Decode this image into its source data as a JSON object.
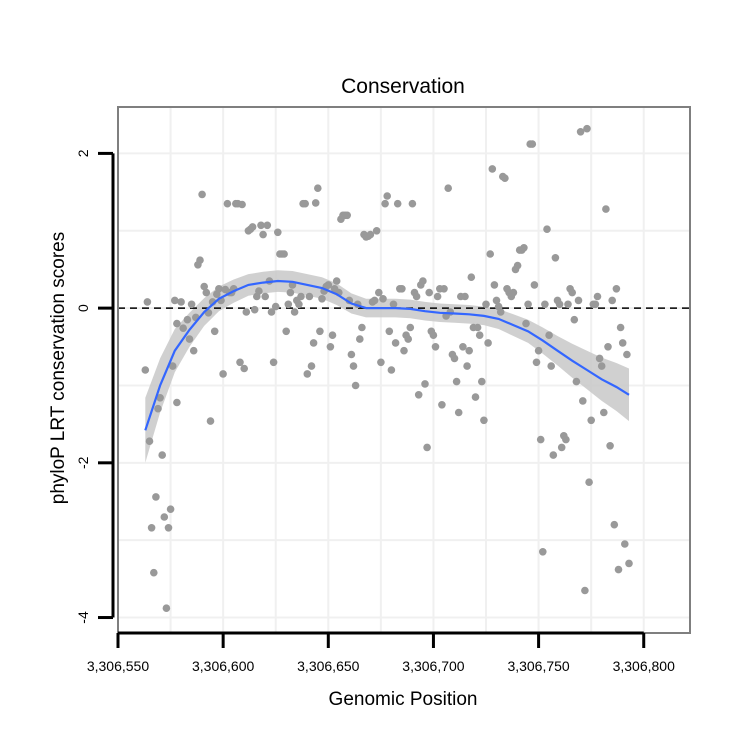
{
  "chart_data": {
    "type": "scatter",
    "title": "Conservation",
    "xlabel": "Genomic Position",
    "ylabel": "phyloP LRT conservation scores",
    "xlim": [
      3306550,
      3306822
    ],
    "ylim": [
      -4.2,
      2.6
    ],
    "x_ticks": [
      3306550,
      3306600,
      3306650,
      3306700,
      3306750,
      3306800
    ],
    "x_tick_labels": [
      "3,306,550",
      "3,306,600",
      "3,306,650",
      "3,306,700",
      "3,306,750",
      "3,306,800"
    ],
    "y_ticks": [
      -4,
      -2,
      0,
      2
    ],
    "y_tick_labels": [
      "-4",
      "-2",
      "0",
      "2"
    ],
    "reference_line_y": 0,
    "grid": true,
    "colors": {
      "points": "#999999",
      "smooth_line": "#3366ff",
      "confidence_band": "#c8c8c8",
      "reference_line": "#000000",
      "panel_border": "#7f7f7f",
      "grid": "#f0f0f0"
    },
    "points": [
      [
        3306563,
        -0.8
      ],
      [
        3306564,
        0.08
      ],
      [
        3306565,
        -1.72
      ],
      [
        3306566,
        -2.84
      ],
      [
        3306567,
        -3.42
      ],
      [
        3306568,
        -2.44
      ],
      [
        3306569,
        -1.3
      ],
      [
        3306570,
        -1.16
      ],
      [
        3306571,
        -1.9
      ],
      [
        3306572,
        -2.7
      ],
      [
        3306573,
        -3.88
      ],
      [
        3306574,
        -2.84
      ],
      [
        3306575,
        -2.6
      ],
      [
        3306576,
        -0.75
      ],
      [
        3306577,
        0.1
      ],
      [
        3306578,
        -1.22
      ],
      [
        3306578,
        -0.2
      ],
      [
        3306580,
        0.08
      ],
      [
        3306581,
        -0.26
      ],
      [
        3306583,
        -0.15
      ],
      [
        3306584,
        -0.4
      ],
      [
        3306585,
        0.05
      ],
      [
        3306586,
        -0.55
      ],
      [
        3306587,
        -0.12
      ],
      [
        3306588,
        0.56
      ],
      [
        3306589,
        0.62
      ],
      [
        3306590,
        1.47
      ],
      [
        3306591,
        0.28
      ],
      [
        3306592,
        0.2
      ],
      [
        3306593,
        -0.06
      ],
      [
        3306594,
        -1.46
      ],
      [
        3306595,
        0.08
      ],
      [
        3306596,
        -0.3
      ],
      [
        3306597,
        0.18
      ],
      [
        3306598,
        0.25
      ],
      [
        3306599,
        0.1
      ],
      [
        3306600,
        -0.85
      ],
      [
        3306601,
        0.24
      ],
      [
        3306602,
        1.35
      ],
      [
        3306603,
        0.2
      ],
      [
        3306604,
        0.2
      ],
      [
        3306605,
        0.25
      ],
      [
        3306606,
        1.35
      ],
      [
        3306607,
        1.35
      ],
      [
        3306608,
        -0.7
      ],
      [
        3306609,
        1.34
      ],
      [
        3306610,
        -0.78
      ],
      [
        3306611,
        -0.05
      ],
      [
        3306612,
        1.0
      ],
      [
        3306613,
        1.02
      ],
      [
        3306614,
        1.05
      ],
      [
        3306615,
        -0.02
      ],
      [
        3306616,
        0.15
      ],
      [
        3306617,
        0.22
      ],
      [
        3306618,
        1.07
      ],
      [
        3306619,
        0.95
      ],
      [
        3306620,
        0.15
      ],
      [
        3306621,
        1.07
      ],
      [
        3306622,
        0.35
      ],
      [
        3306623,
        -0.05
      ],
      [
        3306624,
        -0.7
      ],
      [
        3306625,
        0.02
      ],
      [
        3306626,
        0.98
      ],
      [
        3306627,
        0.7
      ],
      [
        3306628,
        0.7
      ],
      [
        3306629,
        0.7
      ],
      [
        3306630,
        -0.3
      ],
      [
        3306631,
        0.05
      ],
      [
        3306632,
        0.2
      ],
      [
        3306633,
        0.3
      ],
      [
        3306634,
        -0.05
      ],
      [
        3306635,
        0.1
      ],
      [
        3306636,
        0.05
      ],
      [
        3306637,
        0.15
      ],
      [
        3306638,
        1.35
      ],
      [
        3306639,
        1.35
      ],
      [
        3306640,
        -0.85
      ],
      [
        3306641,
        0.15
      ],
      [
        3306642,
        -0.75
      ],
      [
        3306643,
        -0.45
      ],
      [
        3306644,
        1.36
      ],
      [
        3306645,
        1.55
      ],
      [
        3306646,
        -0.3
      ],
      [
        3306647,
        0.12
      ],
      [
        3306648,
        0.22
      ],
      [
        3306649,
        0.28
      ],
      [
        3306650,
        0.3
      ],
      [
        3306651,
        -0.5
      ],
      [
        3306652,
        -0.35
      ],
      [
        3306653,
        0.25
      ],
      [
        3306654,
        0.35
      ],
      [
        3306655,
        0.2
      ],
      [
        3306656,
        1.15
      ],
      [
        3306657,
        1.2
      ],
      [
        3306658,
        1.2
      ],
      [
        3306659,
        1.2
      ],
      [
        3306660,
        0.1
      ],
      [
        3306661,
        -0.6
      ],
      [
        3306662,
        -0.75
      ],
      [
        3306663,
        -1.0
      ],
      [
        3306664,
        0.05
      ],
      [
        3306665,
        -0.4
      ],
      [
        3306666,
        -0.25
      ],
      [
        3306667,
        0.95
      ],
      [
        3306668,
        0.92
      ],
      [
        3306669,
        0.93
      ],
      [
        3306670,
        0.95
      ],
      [
        3306671,
        0.08
      ],
      [
        3306672,
        0.1
      ],
      [
        3306673,
        1.0
      ],
      [
        3306674,
        0.2
      ],
      [
        3306675,
        -0.7
      ],
      [
        3306676,
        0.12
      ],
      [
        3306677,
        1.35
      ],
      [
        3306678,
        1.45
      ],
      [
        3306679,
        -0.3
      ],
      [
        3306680,
        -0.8
      ],
      [
        3306681,
        0.05
      ],
      [
        3306682,
        -0.45
      ],
      [
        3306683,
        1.35
      ],
      [
        3306684,
        0.25
      ],
      [
        3306685,
        0.25
      ],
      [
        3306686,
        -0.55
      ],
      [
        3306687,
        -0.35
      ],
      [
        3306688,
        -0.4
      ],
      [
        3306689,
        -0.25
      ],
      [
        3306690,
        1.35
      ],
      [
        3306691,
        0.2
      ],
      [
        3306692,
        0.15
      ],
      [
        3306693,
        -1.12
      ],
      [
        3306694,
        0.3
      ],
      [
        3306695,
        0.35
      ],
      [
        3306696,
        -0.98
      ],
      [
        3306697,
        -1.8
      ],
      [
        3306698,
        0.2
      ],
      [
        3306699,
        -0.3
      ],
      [
        3306700,
        -0.35
      ],
      [
        3306701,
        -0.5
      ],
      [
        3306702,
        0.15
      ],
      [
        3306703,
        0.25
      ],
      [
        3306704,
        -1.25
      ],
      [
        3306705,
        0.25
      ],
      [
        3306706,
        -0.1
      ],
      [
        3306707,
        1.55
      ],
      [
        3306708,
        -0.05
      ],
      [
        3306709,
        -0.6
      ],
      [
        3306710,
        -0.65
      ],
      [
        3306711,
        -0.95
      ],
      [
        3306712,
        -1.35
      ],
      [
        3306713,
        0.15
      ],
      [
        3306714,
        -0.5
      ],
      [
        3306715,
        0.15
      ],
      [
        3306716,
        -0.75
      ],
      [
        3306717,
        -0.55
      ],
      [
        3306718,
        0.4
      ],
      [
        3306719,
        -0.25
      ],
      [
        3306720,
        -1.15
      ],
      [
        3306721,
        -0.25
      ],
      [
        3306722,
        -0.35
      ],
      [
        3306723,
        -0.95
      ],
      [
        3306724,
        -1.45
      ],
      [
        3306725,
        0.05
      ],
      [
        3306726,
        -0.45
      ],
      [
        3306727,
        0.7
      ],
      [
        3306728,
        1.8
      ],
      [
        3306729,
        0.3
      ],
      [
        3306730,
        0.1
      ],
      [
        3306731,
        0.02
      ],
      [
        3306732,
        -0.05
      ],
      [
        3306733,
        1.7
      ],
      [
        3306734,
        1.68
      ],
      [
        3306735,
        0.25
      ],
      [
        3306736,
        0.2
      ],
      [
        3306737,
        0.15
      ],
      [
        3306738,
        0.2
      ],
      [
        3306739,
        0.5
      ],
      [
        3306740,
        0.55
      ],
      [
        3306741,
        0.75
      ],
      [
        3306742,
        0.75
      ],
      [
        3306743,
        0.78
      ],
      [
        3306744,
        -0.2
      ],
      [
        3306745,
        0.05
      ],
      [
        3306746,
        2.12
      ],
      [
        3306747,
        2.12
      ],
      [
        3306748,
        0.3
      ],
      [
        3306749,
        -0.7
      ],
      [
        3306750,
        -0.55
      ],
      [
        3306751,
        -1.7
      ],
      [
        3306752,
        -3.15
      ],
      [
        3306753,
        0.05
      ],
      [
        3306754,
        1.02
      ],
      [
        3306755,
        -0.35
      ],
      [
        3306756,
        -0.75
      ],
      [
        3306757,
        -1.9
      ],
      [
        3306758,
        0.65
      ],
      [
        3306759,
        0.1
      ],
      [
        3306760,
        0.05
      ],
      [
        3306761,
        -1.8
      ],
      [
        3306762,
        -1.65
      ],
      [
        3306763,
        -1.7
      ],
      [
        3306764,
        0.05
      ],
      [
        3306765,
        0.25
      ],
      [
        3306766,
        0.2
      ],
      [
        3306767,
        -0.15
      ],
      [
        3306768,
        -0.95
      ],
      [
        3306769,
        0.1
      ],
      [
        3306770,
        2.28
      ],
      [
        3306771,
        -1.2
      ],
      [
        3306772,
        -3.65
      ],
      [
        3306773,
        2.32
      ],
      [
        3306774,
        -2.25
      ],
      [
        3306775,
        -1.45
      ],
      [
        3306776,
        0.05
      ],
      [
        3306777,
        0.05
      ],
      [
        3306778,
        0.15
      ],
      [
        3306779,
        -0.65
      ],
      [
        3306780,
        -0.75
      ],
      [
        3306781,
        -1.35
      ],
      [
        3306782,
        1.28
      ],
      [
        3306783,
        -0.5
      ],
      [
        3306784,
        -1.78
      ],
      [
        3306785,
        0.1
      ],
      [
        3306786,
        -2.8
      ],
      [
        3306787,
        0.25
      ],
      [
        3306788,
        -3.38
      ],
      [
        3306789,
        -0.25
      ],
      [
        3306790,
        -0.45
      ],
      [
        3306791,
        -3.05
      ],
      [
        3306792,
        -0.6
      ],
      [
        3306793,
        -3.3
      ]
    ],
    "smooth_line": [
      [
        3306563,
        -1.58
      ],
      [
        3306570,
        -1.0
      ],
      [
        3306577,
        -0.55
      ],
      [
        3306584,
        -0.28
      ],
      [
        3306591,
        -0.05
      ],
      [
        3306598,
        0.12
      ],
      [
        3306605,
        0.22
      ],
      [
        3306612,
        0.3
      ],
      [
        3306619,
        0.33
      ],
      [
        3306626,
        0.35
      ],
      [
        3306633,
        0.34
      ],
      [
        3306640,
        0.3
      ],
      [
        3306647,
        0.26
      ],
      [
        3306654,
        0.18
      ],
      [
        3306661,
        0.06
      ],
      [
        3306668,
        0.0
      ],
      [
        3306675,
        0.0
      ],
      [
        3306682,
        0.0
      ],
      [
        3306689,
        -0.01
      ],
      [
        3306696,
        -0.04
      ],
      [
        3306703,
        -0.06
      ],
      [
        3306710,
        -0.07
      ],
      [
        3306717,
        -0.08
      ],
      [
        3306724,
        -0.1
      ],
      [
        3306731,
        -0.14
      ],
      [
        3306738,
        -0.22
      ],
      [
        3306745,
        -0.3
      ],
      [
        3306752,
        -0.42
      ],
      [
        3306759,
        -0.55
      ],
      [
        3306766,
        -0.68
      ],
      [
        3306773,
        -0.8
      ],
      [
        3306780,
        -0.92
      ],
      [
        3306787,
        -1.02
      ],
      [
        3306793,
        -1.12
      ]
    ],
    "band_halfwidth": [
      0.42,
      0.35,
      0.28,
      0.22,
      0.18,
      0.16,
      0.15,
      0.14,
      0.14,
      0.14,
      0.14,
      0.14,
      0.14,
      0.14,
      0.13,
      0.12,
      0.12,
      0.12,
      0.12,
      0.12,
      0.12,
      0.12,
      0.12,
      0.12,
      0.13,
      0.14,
      0.15,
      0.17,
      0.19,
      0.22,
      0.25,
      0.28,
      0.31,
      0.34
    ]
  }
}
